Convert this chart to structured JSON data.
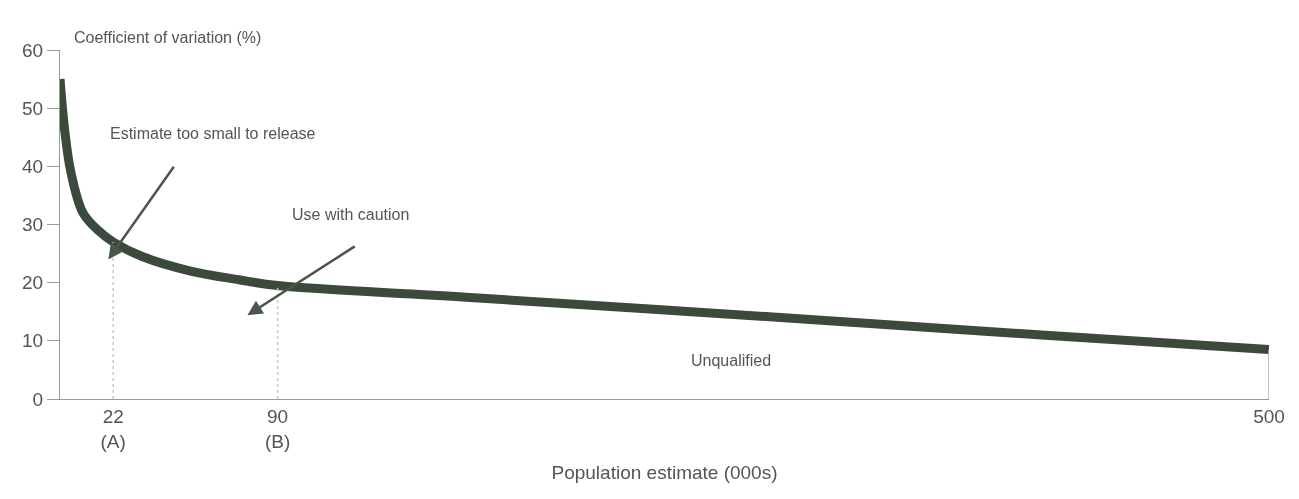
{
  "chart_data": {
    "type": "line",
    "xlabel": "Population estimate (000s)",
    "ylabel": "Coefficient of variation (%)",
    "xlim": [
      0,
      500
    ],
    "xticks": [
      {
        "value": 22,
        "label": "22\n(A)"
      },
      {
        "value": 90,
        "label": "90\n(B)"
      },
      500
    ],
    "ylim": [
      0,
      60
    ],
    "yticks": [
      0,
      10,
      20,
      30,
      40,
      50,
      60
    ],
    "marker": "none",
    "series": [
      {
        "color": "#3b4a3b",
        "line_style": "solid",
        "x": [
          0,
          2,
          4.5,
          9.5,
          15.75,
          22,
          34,
          54,
          74,
          90,
          168,
          298,
          406,
          500
        ],
        "values": [
          55,
          46,
          39,
          32,
          29,
          27,
          24.5,
          22,
          20.5,
          19.5,
          17.5,
          14,
          11,
          8.5
        ]
      },
      {
        "color": "#c8c8c8",
        "line_style": "dotted",
        "x": [
          22,
          22
        ],
        "values": [
          0,
          27
        ]
      },
      {
        "color": "#c8c8c8",
        "line_style": "dotted",
        "x": [
          90,
          90
        ],
        "values": [
          0,
          19.5
        ]
      },
      {
        "color": "#b0b0b0",
        "line_style": "solid",
        "x": [
          500,
          500
        ],
        "values": [
          0,
          8.5
        ]
      }
    ],
    "annotations": [
      "Estimate too small to release",
      "Use with caution",
      "Unqualified"
    ]
  }
}
